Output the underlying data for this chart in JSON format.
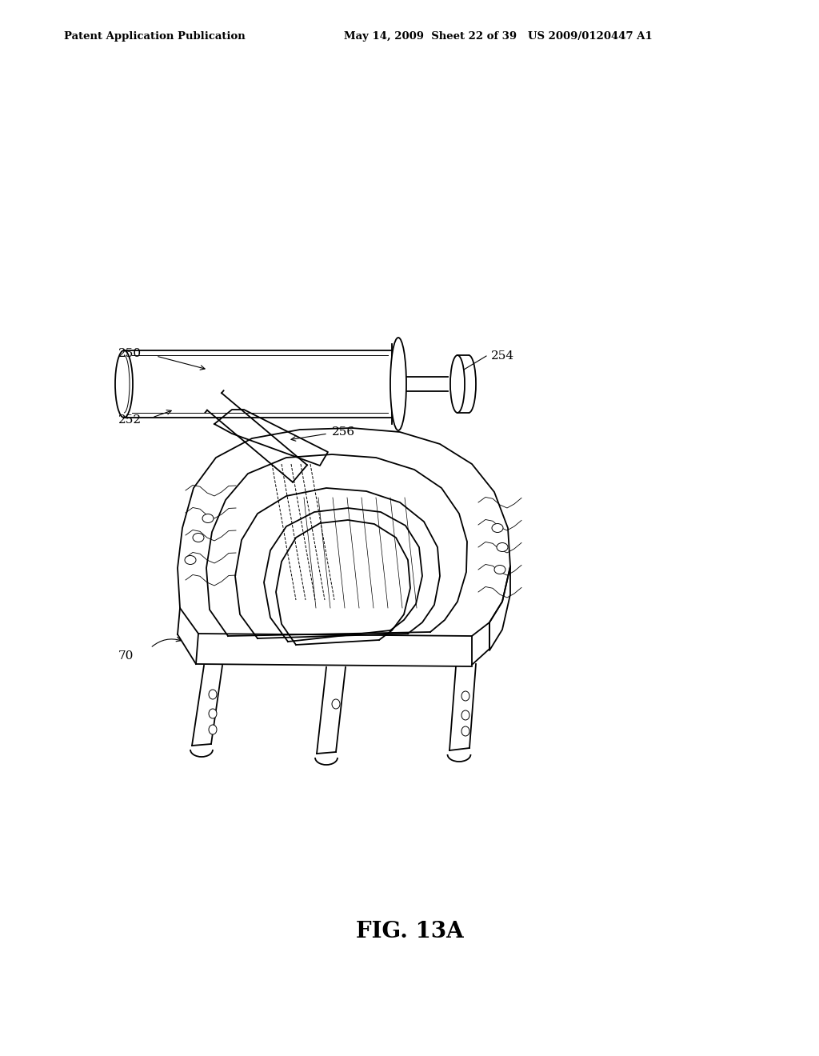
{
  "bg_color": "#ffffff",
  "header_left": "Patent Application Publication",
  "header_mid": "May 14, 2009  Sheet 22 of 39",
  "header_right": "US 2009/0120447 A1",
  "header_fontsize": 9.5,
  "fig_label": "FIG. 13A",
  "fig_label_fontsize": 20,
  "label_fontsize": 11,
  "line_color": "#000000",
  "line_width": 1.3,
  "thin_line": 0.7,
  "very_thin": 0.4
}
